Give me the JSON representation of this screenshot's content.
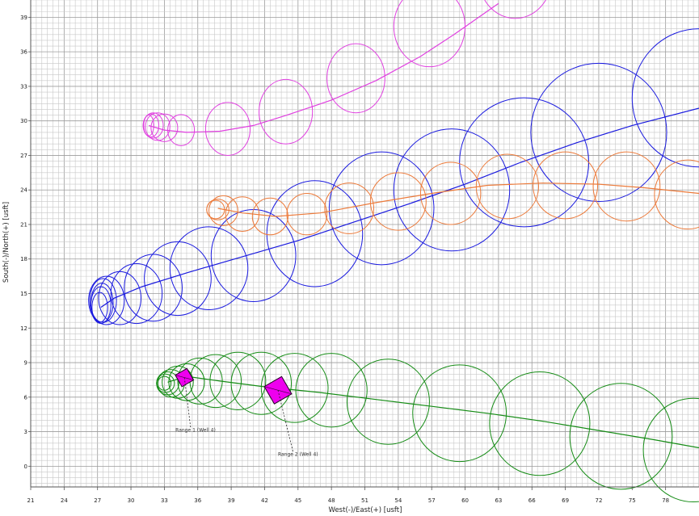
{
  "chart_data": {
    "type": "scatter",
    "xlabel": "West(-)/East(+)  [usft]",
    "ylabel": "South(-)/North(+)  [usft]",
    "xlim": [
      21,
      81
    ],
    "ylim": [
      -1.8,
      40.5
    ],
    "x_ticks": [
      21,
      24,
      27,
      30,
      33,
      36,
      39,
      42,
      45,
      48,
      51,
      54,
      57,
      60,
      63,
      66,
      69,
      72,
      75,
      78
    ],
    "y_ticks": [
      0,
      3,
      6,
      9,
      12,
      15,
      18,
      21,
      24,
      27,
      30,
      33,
      36,
      39
    ],
    "grid": true,
    "colors": {
      "magenta": "#e040e0",
      "blue": "#1a1adf",
      "orange": "#ec7a3a",
      "green": "#168c16",
      "marker_fill": "#ee00ee",
      "grid_minor": "#c8c8c8",
      "grid_major": "#9c9c9c"
    },
    "series": [
      {
        "color": "magenta",
        "line": [
          [
            31.6,
            29.6
          ],
          [
            33,
            29.2
          ],
          [
            35,
            29.0
          ],
          [
            38,
            29.1
          ],
          [
            41,
            29.6
          ],
          [
            44,
            30.5
          ],
          [
            48,
            31.8
          ],
          [
            52,
            33.5
          ],
          [
            56,
            35.6
          ],
          [
            59,
            37.5
          ],
          [
            63,
            40.2
          ]
        ],
        "ellipses": [
          [
            31.6,
            29.6,
            0.45,
            0.9
          ],
          [
            31.8,
            29.6,
            0.7,
            1.0
          ],
          [
            32.0,
            29.6,
            0.9,
            1.1
          ],
          [
            32.4,
            29.5,
            1.1,
            1.2
          ],
          [
            33.0,
            29.4,
            1.2,
            1.2
          ],
          [
            34.5,
            29.2,
            1.2,
            1.35
          ],
          [
            38.7,
            29.3,
            2.0,
            2.3
          ],
          [
            43.9,
            30.8,
            2.4,
            2.8
          ],
          [
            50.2,
            33.7,
            2.6,
            3.0
          ],
          [
            56.8,
            38.2,
            3.2,
            3.5
          ],
          [
            64.5,
            42.5,
            3.3,
            3.6
          ]
        ]
      },
      {
        "color": "blue",
        "line": [
          [
            27.3,
            13.8
          ],
          [
            28.5,
            14.6
          ],
          [
            31,
            15.6
          ],
          [
            35,
            16.8
          ],
          [
            40,
            18.2
          ],
          [
            45,
            19.6
          ],
          [
            50,
            21.2
          ],
          [
            55,
            22.8
          ],
          [
            60,
            24.5
          ],
          [
            65,
            26.4
          ],
          [
            70,
            28.1
          ],
          [
            75,
            29.6
          ],
          [
            81,
            31.1
          ]
        ],
        "ellipses": [
          [
            27.2,
            13.8,
            0.7,
            1.3
          ],
          [
            27.3,
            14.0,
            0.9,
            1.6
          ],
          [
            27.4,
            14.2,
            1.0,
            1.7
          ],
          [
            27.5,
            14.4,
            1.2,
            1.9
          ],
          [
            27.8,
            14.4,
            1.6,
            2.1
          ],
          [
            29.0,
            14.6,
            1.9,
            2.3
          ],
          [
            30.5,
            15.0,
            2.3,
            2.6
          ],
          [
            32.0,
            15.5,
            2.6,
            2.9
          ],
          [
            34.2,
            16.3,
            3.0,
            3.2
          ],
          [
            37.0,
            17.2,
            3.5,
            3.6
          ],
          [
            41.0,
            18.3,
            3.8,
            4.0
          ],
          [
            46.5,
            20.2,
            4.3,
            4.6
          ],
          [
            52.5,
            22.4,
            4.7,
            4.9
          ],
          [
            58.8,
            24.0,
            5.2,
            5.3
          ],
          [
            65.3,
            26.4,
            5.8,
            5.6
          ],
          [
            72.0,
            29.0,
            6.1,
            6.0
          ],
          [
            81.0,
            32.0,
            6.0,
            6.0
          ]
        ]
      },
      {
        "color": "orange",
        "line": [
          [
            37.8,
            22.4
          ],
          [
            40,
            22.0
          ],
          [
            43,
            21.7
          ],
          [
            47,
            22.0
          ],
          [
            52,
            22.9
          ],
          [
            57,
            23.7
          ],
          [
            62,
            24.4
          ],
          [
            67,
            24.6
          ],
          [
            72,
            24.5
          ],
          [
            76,
            24.2
          ],
          [
            81,
            23.7
          ]
        ],
        "ellipses": [
          [
            37.6,
            22.3,
            0.8,
            0.8
          ],
          [
            37.8,
            22.3,
            1.0,
            0.9
          ],
          [
            38.3,
            22.2,
            1.3,
            1.3
          ],
          [
            40.0,
            21.9,
            1.5,
            1.5
          ],
          [
            42.5,
            21.7,
            1.6,
            1.6
          ],
          [
            45.8,
            21.9,
            1.8,
            1.8
          ],
          [
            49.6,
            22.4,
            2.2,
            2.2
          ],
          [
            54.0,
            23.0,
            2.5,
            2.5
          ],
          [
            58.7,
            23.7,
            2.7,
            2.7
          ],
          [
            63.8,
            24.3,
            2.8,
            2.8
          ],
          [
            69.0,
            24.4,
            2.9,
            2.9
          ],
          [
            74.5,
            24.3,
            3.0,
            3.0
          ],
          [
            80.0,
            23.6,
            3.0,
            3.0
          ]
        ]
      },
      {
        "color": "green",
        "line": [
          [
            33.3,
            7.3
          ],
          [
            35,
            7.8
          ],
          [
            38,
            7.4
          ],
          [
            42,
            6.9
          ],
          [
            47,
            6.4
          ],
          [
            52,
            5.8
          ],
          [
            57,
            5.2
          ],
          [
            62,
            4.6
          ],
          [
            67,
            3.9
          ],
          [
            72,
            3.1
          ],
          [
            77,
            2.3
          ],
          [
            81,
            1.6
          ]
        ],
        "ellipses": [
          [
            33.0,
            7.2,
            0.6,
            0.6
          ],
          [
            33.1,
            7.2,
            0.8,
            0.8
          ],
          [
            33.3,
            7.2,
            1.0,
            1.0
          ],
          [
            33.6,
            7.2,
            1.2,
            1.2
          ],
          [
            34.2,
            7.3,
            1.4,
            1.4
          ],
          [
            35.0,
            7.3,
            1.6,
            1.6
          ],
          [
            36.2,
            7.4,
            2.0,
            2.0
          ],
          [
            37.6,
            7.4,
            2.3,
            2.3
          ],
          [
            39.6,
            7.4,
            2.5,
            2.5
          ],
          [
            41.7,
            7.2,
            2.7,
            2.7
          ],
          [
            44.7,
            6.8,
            3.0,
            3.0
          ],
          [
            48.0,
            6.6,
            3.2,
            3.2
          ],
          [
            53.1,
            5.6,
            3.7,
            3.7
          ],
          [
            59.5,
            4.6,
            4.2,
            4.2
          ],
          [
            66.7,
            3.7,
            4.5,
            4.5
          ],
          [
            74.0,
            2.6,
            4.6,
            4.6
          ],
          [
            80.5,
            1.4,
            4.5,
            4.5
          ]
        ]
      }
    ],
    "markers": [
      {
        "x": 34.8,
        "y": 7.7,
        "size": 1.2,
        "angle": -30
      },
      {
        "x": 43.2,
        "y": 6.6,
        "size": 1.8,
        "angle": -30
      }
    ],
    "annotations": [
      {
        "text": "Range 1 (Well 4)",
        "x": 35.8,
        "y": 3.0,
        "anchor_x": 34.8,
        "anchor_y": 7.7
      },
      {
        "text": "Range 2 (Well 4)",
        "x": 45.0,
        "y": 0.9,
        "anchor_x": 43.2,
        "anchor_y": 6.6
      }
    ]
  }
}
